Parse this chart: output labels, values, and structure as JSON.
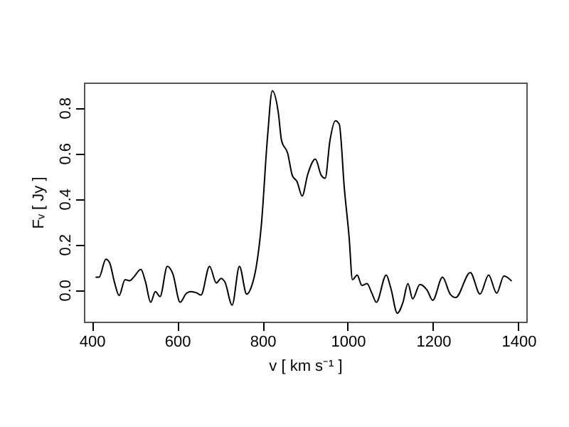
{
  "chart_data": {
    "type": "line",
    "xlabel": "v [ km s⁻¹ ]",
    "ylabel": "Fᵥ [ Jy ]",
    "xlim": [
      381.6,
      1418.4
    ],
    "ylim": [
      -0.14,
      0.91
    ],
    "xticks": [
      400,
      600,
      800,
      1000,
      1200,
      1400
    ],
    "yticks": [
      {
        "value": 0,
        "label": "0.0"
      },
      0.2,
      0.4,
      0.6,
      0.8
    ],
    "grid": false,
    "line_style": "solid",
    "marker": "none",
    "series": [
      {
        "color": "#000000",
        "x": [
          410,
          417,
          433,
          442,
          453,
          464,
          478,
          489,
          498,
          515,
          526,
          538,
          549,
          560,
          577,
          590,
          607,
          622,
          633,
          645,
          656,
          676,
          692,
          703,
          712,
          729,
          746,
          763,
          774,
          786,
          797,
          812,
          823,
          837,
          845,
          859,
          870,
          881,
          893,
          906,
          924,
          938,
          947,
          958,
          971,
          980,
          992,
          1003,
          1011,
          1022,
          1033,
          1045,
          1056,
          1067,
          1090,
          1101,
          1116,
          1129,
          1141,
          1152,
          1169,
          1186,
          1199,
          1222,
          1240,
          1253,
          1287,
          1310,
          1330,
          1349,
          1366,
          1383
        ],
        "values": [
          0.055,
          0.055,
          0.134,
          0.118,
          0.034,
          -0.025,
          0.044,
          0.04,
          0.055,
          0.09,
          0.034,
          -0.055,
          -0.008,
          -0.03,
          0.103,
          0.07,
          -0.055,
          -0.015,
          -0.008,
          -0.013,
          -0.023,
          0.103,
          0.03,
          0.05,
          0.034,
          -0.067,
          0.103,
          -0.019,
          0.013,
          0.107,
          0.275,
          0.674,
          0.874,
          0.78,
          0.653,
          0.6,
          0.502,
          0.475,
          0.412,
          0.506,
          0.574,
          0.502,
          0.49,
          0.653,
          0.742,
          0.727,
          0.443,
          0.233,
          0.044,
          0.065,
          0.019,
          0.027,
          -0.013,
          -0.055,
          0.065,
          0.006,
          -0.103,
          -0.057,
          0.027,
          -0.04,
          0.023,
          -0.002,
          -0.046,
          0.055,
          -0.019,
          -0.034,
          0.076,
          -0.019,
          0.065,
          -0.015,
          0.061,
          0.04
        ]
      }
    ]
  }
}
